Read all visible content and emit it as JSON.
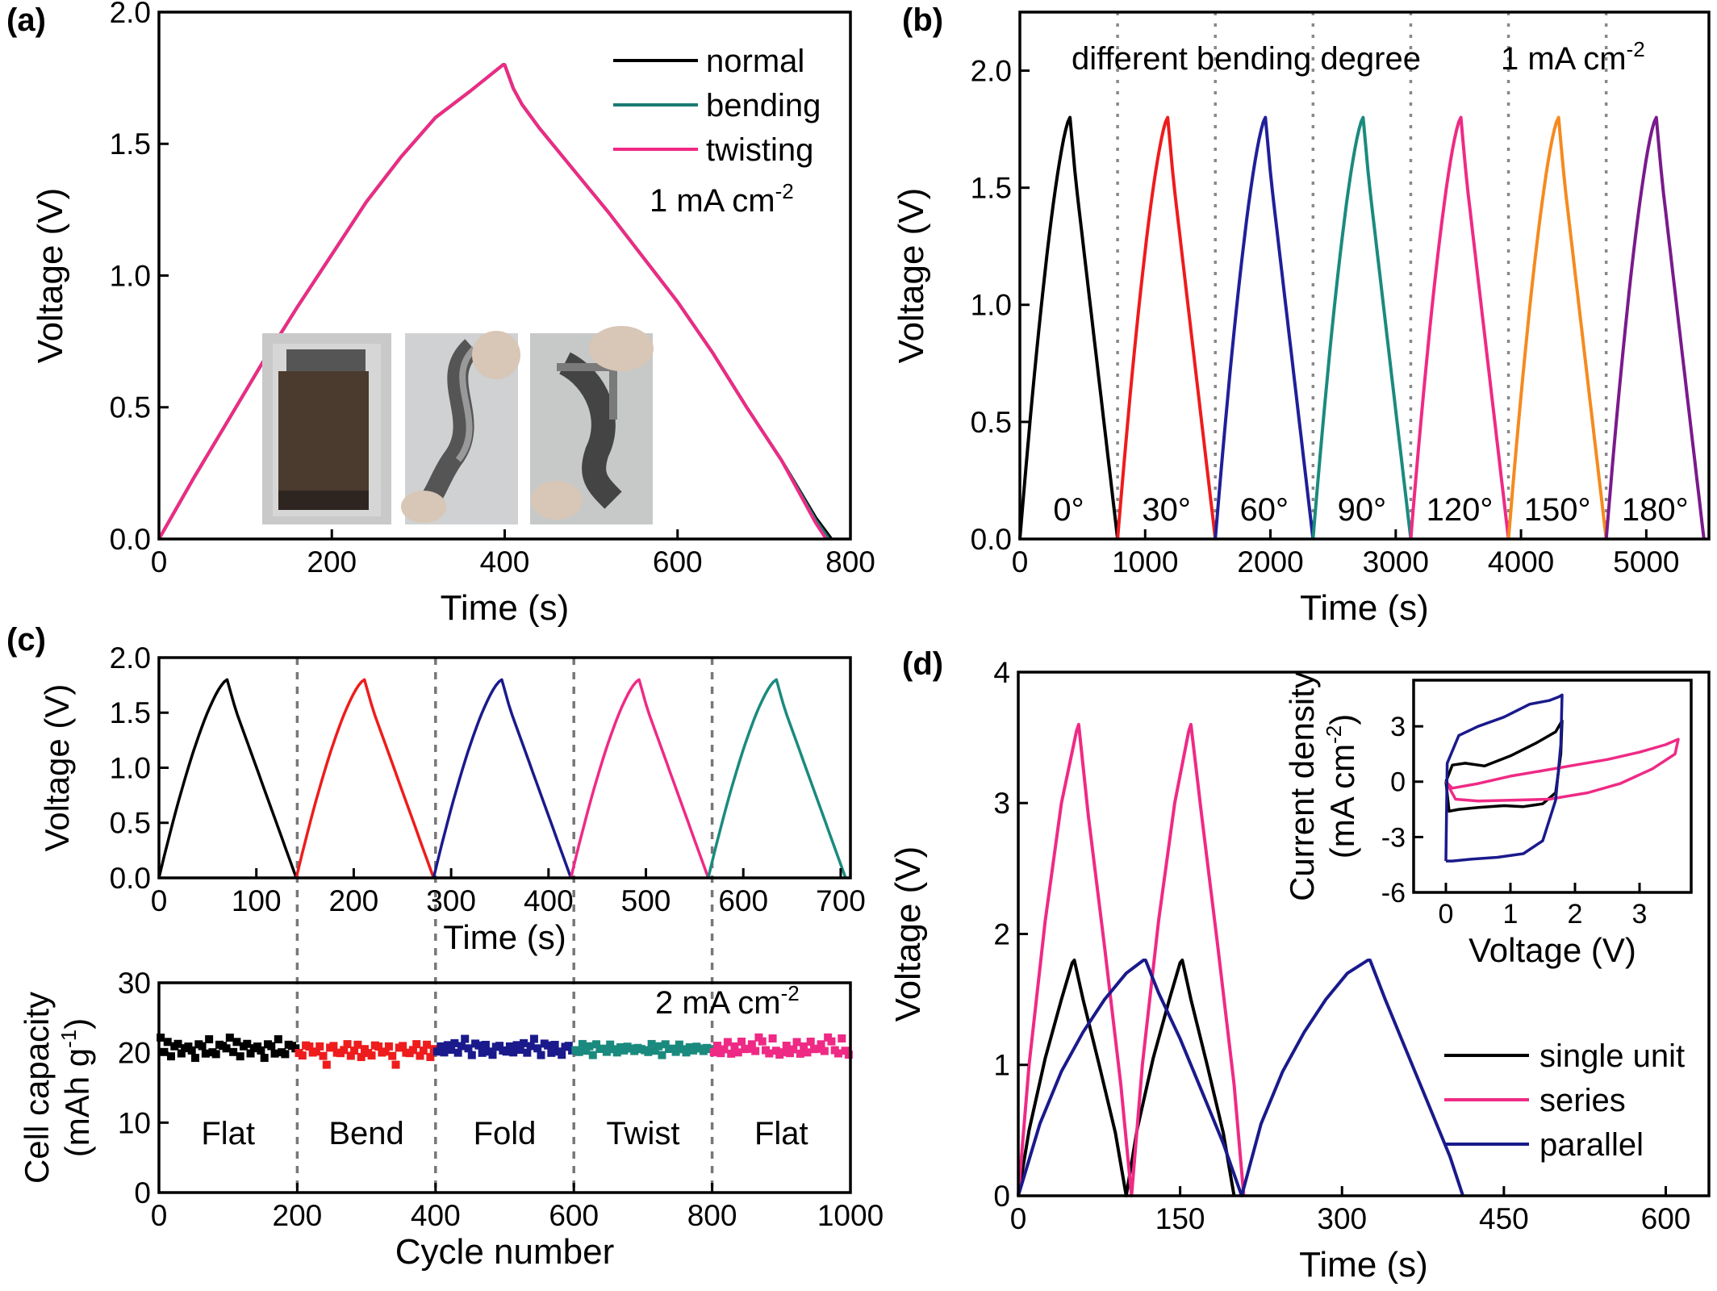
{
  "chart_data": [
    {
      "id": "a",
      "panel_label": "(a)",
      "type": "line",
      "xlabel": "Time (s)",
      "ylabel": "Voltage (V)",
      "xlim": [
        0,
        800
      ],
      "ylim": [
        0,
        2.0
      ],
      "xticks": [
        0,
        200,
        400,
        600,
        800
      ],
      "yticks": [
        0.0,
        0.5,
        1.0,
        1.5,
        2.0
      ],
      "ytick_labels": [
        "0.0",
        "0.5",
        "1.0",
        "1.5",
        "2.0"
      ],
      "legend_position": "top-right",
      "annotation": {
        "text": "1 mA cm",
        "sup": "-2"
      },
      "inset": "three photographs of the flexible device: normal, bending, twisting",
      "series": [
        {
          "name": "normal",
          "color": "#000000",
          "x": [
            0,
            40,
            80,
            120,
            160,
            200,
            240,
            280,
            320,
            360,
            398,
            400,
            410,
            420,
            440,
            480,
            520,
            560,
            600,
            640,
            680,
            720,
            760,
            778
          ],
          "y": [
            0,
            0.23,
            0.45,
            0.67,
            0.88,
            1.08,
            1.28,
            1.45,
            1.6,
            1.7,
            1.8,
            1.8,
            1.71,
            1.65,
            1.56,
            1.4,
            1.24,
            1.07,
            0.9,
            0.71,
            0.5,
            0.3,
            0.08,
            0
          ]
        },
        {
          "name": "bending",
          "color": "#1b7b73",
          "x": [
            0,
            40,
            80,
            120,
            160,
            200,
            240,
            280,
            320,
            360,
            398,
            400,
            410,
            420,
            440,
            480,
            520,
            560,
            600,
            640,
            680,
            720,
            760,
            775
          ],
          "y": [
            0,
            0.23,
            0.45,
            0.67,
            0.88,
            1.08,
            1.28,
            1.45,
            1.6,
            1.7,
            1.8,
            1.8,
            1.71,
            1.65,
            1.56,
            1.4,
            1.24,
            1.07,
            0.9,
            0.71,
            0.5,
            0.3,
            0.07,
            0
          ]
        },
        {
          "name": "twisting",
          "color": "#ef2a85",
          "x": [
            0,
            40,
            80,
            120,
            160,
            200,
            240,
            280,
            320,
            360,
            398,
            400,
            410,
            420,
            440,
            480,
            520,
            560,
            600,
            640,
            680,
            720,
            760,
            772
          ],
          "y": [
            0,
            0.23,
            0.45,
            0.67,
            0.88,
            1.08,
            1.28,
            1.45,
            1.6,
            1.7,
            1.8,
            1.8,
            1.71,
            1.65,
            1.56,
            1.4,
            1.24,
            1.07,
            0.9,
            0.71,
            0.5,
            0.3,
            0.06,
            0
          ]
        }
      ]
    },
    {
      "id": "b",
      "panel_label": "(b)",
      "type": "line",
      "xlabel": "Time (s)",
      "ylabel": "Voltage (V)",
      "xlim": [
        0,
        5500
      ],
      "ylim": [
        0,
        2.25
      ],
      "xticks": [
        0,
        1000,
        2000,
        3000,
        4000,
        5000
      ],
      "yticks": [
        0.0,
        0.5,
        1.0,
        1.5,
        2.0
      ],
      "ytick_labels": [
        "0.0",
        "0.5",
        "1.0",
        "1.5",
        "2.0"
      ],
      "title_text": "different bending degree",
      "annotation": {
        "text": "1 mA cm",
        "sup": "-2"
      },
      "separators_x": [
        780,
        1560,
        2340,
        3120,
        3900,
        4680
      ],
      "cycle_period": 780,
      "cycle_peak_time": 400,
      "cycle_peak_voltage": 1.8,
      "series": [
        {
          "name": "0°",
          "color": "#000000",
          "start": 0
        },
        {
          "name": "30°",
          "color": "#ee1c1c",
          "start": 780
        },
        {
          "name": "60°",
          "color": "#1f1f9a",
          "start": 1560
        },
        {
          "name": "90°",
          "color": "#1b8a7e",
          "start": 2340
        },
        {
          "name": "120°",
          "color": "#ef2a85",
          "start": 3120
        },
        {
          "name": "150°",
          "color": "#f58a1f",
          "start": 3900
        },
        {
          "name": "180°",
          "color": "#7a1a8c",
          "start": 4680
        }
      ]
    },
    {
      "id": "c_top",
      "panel_label": "(c)",
      "type": "line",
      "xlabel": "Time (s)",
      "ylabel": "Voltage (V)",
      "xlim": [
        0,
        710
      ],
      "ylim": [
        0,
        2.0
      ],
      "xticks": [
        0,
        100,
        200,
        300,
        400,
        500,
        600,
        700
      ],
      "yticks": [
        0.0,
        0.5,
        1.0,
        1.5,
        2.0
      ],
      "ytick_labels": [
        "0.0",
        "0.5",
        "1.0",
        "1.5",
        "2.0"
      ],
      "cycle_period": 141,
      "cycle_peak_time": 70,
      "cycle_peak_voltage": 1.8,
      "separators_x": [
        141,
        282,
        423,
        564
      ],
      "series": [
        {
          "color": "#000000",
          "start": 0
        },
        {
          "color": "#ee1c1c",
          "start": 141
        },
        {
          "color": "#1a1a8c",
          "start": 282
        },
        {
          "color": "#ef2a85",
          "start": 423
        },
        {
          "color": "#1b8a7e",
          "start": 564
        }
      ]
    },
    {
      "id": "c_bottom",
      "type": "scatter",
      "xlabel": "Cycle number",
      "ylabel_line1": "Cell capacity",
      "ylabel_line2": "(mAh g",
      "ylabel_sup": "-1",
      "ylabel_close": ")",
      "xlim": [
        0,
        1000
      ],
      "ylim": [
        0,
        30
      ],
      "xticks": [
        0,
        200,
        400,
        600,
        800,
        1000
      ],
      "yticks": [
        0,
        10,
        20,
        30
      ],
      "annotation": {
        "text": "2 mA cm",
        "sup": "-2"
      },
      "separators_x": [
        200,
        400,
        600,
        800
      ],
      "segments": [
        {
          "label": "Flat",
          "range": [
            0,
            200
          ],
          "color": "#000000",
          "y": [
            22.4,
            20.1,
            21.3,
            19.6,
            20.8,
            21.5,
            19.9,
            20.4,
            21.0,
            20.2,
            19.5,
            21.2,
            20.7,
            20.0,
            21.8,
            20.3,
            19.8,
            20.9,
            21.1,
            20.5
          ]
        },
        {
          "label": "Bend",
          "range": [
            200,
            400
          ],
          "color": "#ee1c1c",
          "y": [
            20.2,
            19.6,
            20.8,
            21.0,
            19.9,
            20.4,
            20.9,
            19.3,
            18.4,
            20.6,
            21.2,
            20.0,
            19.7,
            20.5,
            21.1,
            19.8,
            20.3,
            20.9,
            19.5,
            20.4
          ]
        },
        {
          "label": "Fold",
          "range": [
            400,
            600
          ],
          "color": "#1a1a8c",
          "y": [
            20.4,
            20.9,
            19.8,
            21.2,
            20.3,
            21.6,
            20.0,
            20.7,
            22.1,
            20.5,
            19.9,
            21.3,
            20.8,
            20.1,
            21.0,
            20.4,
            19.7,
            20.6,
            21.1,
            20.2
          ]
        },
        {
          "label": "Twist",
          "range": [
            600,
            800
          ],
          "color": "#1b8a7e",
          "y": [
            20.6,
            20.1,
            21.0,
            20.4,
            20.8,
            19.9,
            21.2,
            20.3,
            20.7,
            20.0,
            21.4,
            20.5,
            19.8,
            20.9,
            20.2,
            21.1,
            20.6,
            20.0,
            20.8,
            20.4
          ]
        },
        {
          "label": "Flat",
          "range": [
            800,
            1000
          ],
          "color": "#ef2a85",
          "y": [
            20.3,
            21.0,
            19.7,
            20.6,
            21.4,
            20.1,
            20.9,
            19.8,
            21.7,
            20.4,
            20.8,
            21.2,
            20.0,
            22.3,
            21.5,
            20.6,
            19.9,
            21.8,
            20.4,
            19.6
          ]
        }
      ]
    },
    {
      "id": "d",
      "panel_label": "(d)",
      "type": "line",
      "xlabel": "Time (s)",
      "ylabel": "Voltage (V)",
      "xlim": [
        0,
        640
      ],
      "ylim": [
        0,
        4
      ],
      "xticks": [
        0,
        150,
        300,
        450,
        600
      ],
      "yticks": [
        0,
        1,
        2,
        3,
        4
      ],
      "legend_position": "bottom-right",
      "series": [
        {
          "name": "single unit",
          "color": "#000000",
          "x": [
            0,
            10,
            25,
            40,
            50,
            52,
            60,
            75,
            90,
            100,
            110,
            125,
            140,
            150,
            152,
            160,
            175,
            190,
            200
          ],
          "y": [
            0,
            0.5,
            1.05,
            1.5,
            1.78,
            1.8,
            1.5,
            1.0,
            0.48,
            0,
            0.5,
            1.05,
            1.5,
            1.78,
            1.8,
            1.5,
            1.0,
            0.48,
            0
          ]
        },
        {
          "name": "series",
          "color": "#ef2a85",
          "x": [
            0,
            10,
            25,
            40,
            54,
            56,
            65,
            80,
            95,
            105,
            115,
            130,
            145,
            158,
            160,
            170,
            185,
            200,
            209
          ],
          "y": [
            0,
            1.0,
            2.1,
            3.0,
            3.55,
            3.6,
            2.9,
            1.9,
            0.85,
            0,
            1.0,
            2.1,
            3.0,
            3.55,
            3.6,
            2.9,
            1.9,
            0.85,
            0
          ]
        },
        {
          "name": "parallel",
          "color": "#1a1a8c",
          "x": [
            0,
            20,
            40,
            60,
            80,
            100,
            116,
            118,
            130,
            150,
            170,
            190,
            207,
            225,
            245,
            265,
            285,
            305,
            324,
            326,
            340,
            360,
            380,
            400,
            412
          ],
          "y": [
            0,
            0.55,
            0.95,
            1.25,
            1.5,
            1.7,
            1.8,
            1.8,
            1.55,
            1.2,
            0.8,
            0.4,
            0,
            0.55,
            0.95,
            1.25,
            1.5,
            1.7,
            1.8,
            1.8,
            1.5,
            1.1,
            0.7,
            0.3,
            0
          ]
        }
      ],
      "inset": {
        "type": "line",
        "xlabel": "Voltage (V)",
        "ylabel_line1": "Current density",
        "ylabel_line2": "(mA cm",
        "ylabel_sup": "-2",
        "ylabel_close": ")",
        "xlim": [
          -0.5,
          3.8
        ],
        "ylim": [
          -6,
          5.5
        ],
        "xticks": [
          0,
          1,
          2,
          3
        ],
        "yticks": [
          -6,
          -3,
          0,
          3
        ],
        "series": [
          {
            "name": "single unit",
            "color": "#000000",
            "x": [
              0,
              0.1,
              0.3,
              0.6,
              1.0,
              1.4,
              1.7,
              1.8,
              1.78,
              1.7,
              1.5,
              1.2,
              0.9,
              0.5,
              0.2,
              0.05,
              0
            ],
            "y": [
              0,
              0.9,
              1.0,
              0.85,
              1.4,
              2.1,
              2.7,
              3.3,
              1.5,
              -0.6,
              -1.2,
              -1.35,
              -1.3,
              -1.4,
              -1.5,
              -1.6,
              0
            ]
          },
          {
            "name": "series",
            "color": "#ef2a85",
            "x": [
              0,
              0.1,
              0.5,
              1.0,
              1.5,
              2.0,
              2.5,
              3.0,
              3.4,
              3.6,
              3.55,
              3.2,
              2.7,
              2.2,
              1.6,
              1.0,
              0.5,
              0.15,
              0
            ],
            "y": [
              0,
              -0.35,
              -0.1,
              0.3,
              0.6,
              0.9,
              1.2,
              1.6,
              2.0,
              2.3,
              1.5,
              0.7,
              -0.1,
              -0.6,
              -0.95,
              -1.0,
              -1.05,
              -0.95,
              0
            ]
          },
          {
            "name": "parallel",
            "color": "#1a1a8c",
            "x": [
              0,
              0.02,
              0.2,
              0.5,
              0.9,
              1.3,
              1.6,
              1.75,
              1.8,
              1.78,
              1.7,
              1.5,
              1.2,
              0.8,
              0.4,
              0.1,
              0
            ],
            "y": [
              -4.3,
              1.0,
              2.5,
              3.0,
              3.5,
              4.2,
              4.4,
              4.6,
              4.7,
              2.0,
              -1.0,
              -3.2,
              -3.9,
              -4.1,
              -4.2,
              -4.3,
              -4.3
            ]
          }
        ]
      }
    }
  ]
}
